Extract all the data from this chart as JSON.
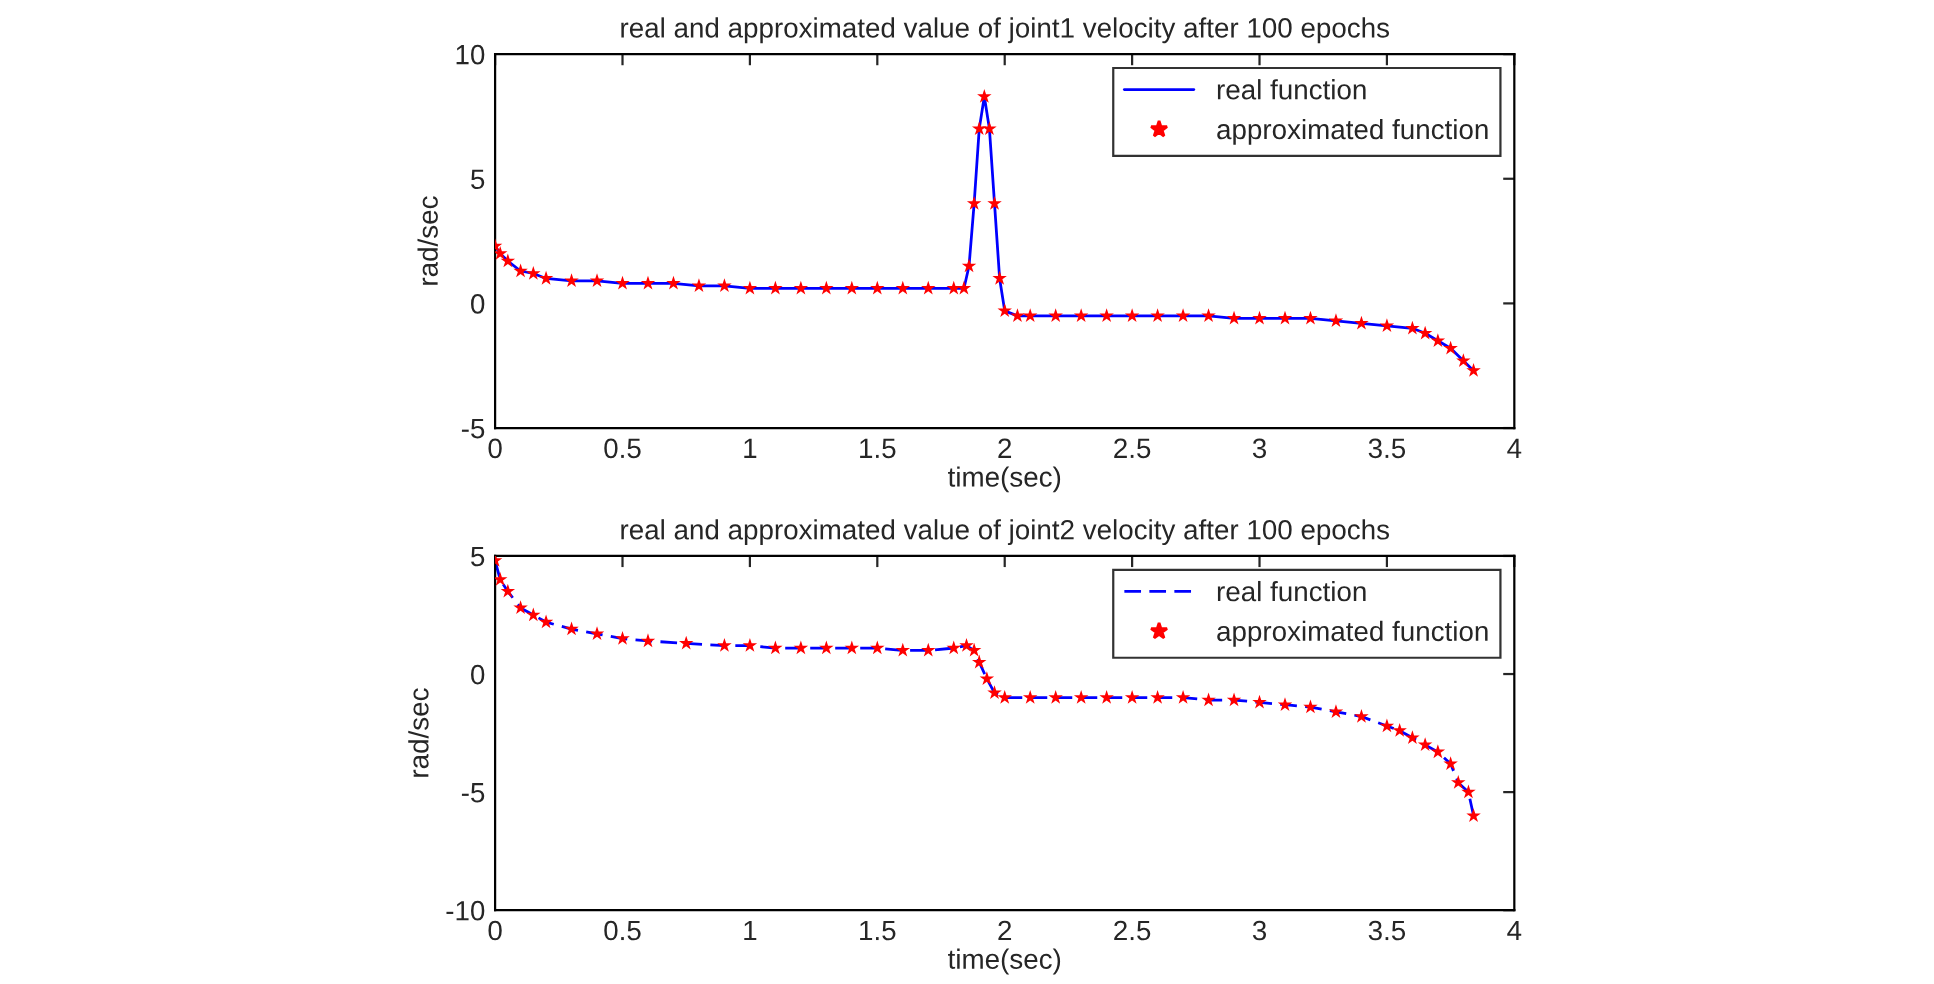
{
  "chart_data": [
    {
      "type": "line",
      "title": "real and approximated value of joint1 velocity after 100 epochs",
      "xlabel": "time(sec)",
      "ylabel": "rad/sec",
      "x": [
        0,
        0.02,
        0.05,
        0.1,
        0.15,
        0.2,
        0.3,
        0.4,
        0.5,
        0.6,
        0.7,
        0.8,
        0.9,
        1.0,
        1.1,
        1.2,
        1.3,
        1.4,
        1.5,
        1.6,
        1.7,
        1.8,
        1.84,
        1.86,
        1.88,
        1.9,
        1.92,
        1.94,
        1.96,
        1.98,
        2.0,
        2.05,
        2.1,
        2.2,
        2.3,
        2.4,
        2.5,
        2.6,
        2.7,
        2.8,
        2.9,
        3.0,
        3.1,
        3.2,
        3.3,
        3.4,
        3.5,
        3.6,
        3.65,
        3.7,
        3.75,
        3.8,
        3.84
      ],
      "series": [
        {
          "name": "real function",
          "line_style": "solid",
          "marker": "none",
          "color": "#0000ff",
          "values": [
            2.3,
            2.0,
            1.7,
            1.3,
            1.2,
            1.0,
            0.9,
            0.9,
            0.8,
            0.8,
            0.8,
            0.7,
            0.7,
            0.6,
            0.6,
            0.6,
            0.6,
            0.6,
            0.6,
            0.6,
            0.6,
            0.6,
            0.6,
            1.5,
            4.0,
            7.0,
            8.3,
            7.0,
            4.0,
            1.0,
            -0.3,
            -0.5,
            -0.5,
            -0.5,
            -0.5,
            -0.5,
            -0.5,
            -0.5,
            -0.5,
            -0.5,
            -0.6,
            -0.6,
            -0.6,
            -0.6,
            -0.7,
            -0.8,
            -0.9,
            -1.0,
            -1.2,
            -1.5,
            -1.8,
            -2.3,
            -2.7
          ]
        },
        {
          "name": "approximated function",
          "type": "scatter",
          "marker": "star",
          "color": "#ff0000",
          "values": [
            2.3,
            2.0,
            1.7,
            1.3,
            1.2,
            1.0,
            0.9,
            0.9,
            0.8,
            0.8,
            0.8,
            0.7,
            0.7,
            0.6,
            0.6,
            0.6,
            0.6,
            0.6,
            0.6,
            0.6,
            0.6,
            0.6,
            0.6,
            1.5,
            4.0,
            7.0,
            8.3,
            7.0,
            4.0,
            1.0,
            -0.3,
            -0.5,
            -0.5,
            -0.5,
            -0.5,
            -0.5,
            -0.5,
            -0.5,
            -0.5,
            -0.5,
            -0.6,
            -0.6,
            -0.6,
            -0.6,
            -0.7,
            -0.8,
            -0.9,
            -1.0,
            -1.2,
            -1.5,
            -1.8,
            -2.3,
            -2.7
          ]
        }
      ],
      "xlim": [
        0,
        4
      ],
      "xticks": [
        0,
        0.5,
        1,
        1.5,
        2,
        2.5,
        3,
        3.5,
        4
      ],
      "ylim": [
        -5,
        10
      ],
      "yticks": [
        -5,
        0,
        5,
        10
      ],
      "legend": "top right",
      "grid": false
    },
    {
      "type": "line",
      "title": "real and approximated value of joint2 velocity after 100 epochs",
      "xlabel": "time(sec)",
      "ylabel": "rad/sec",
      "x": [
        0,
        0.02,
        0.05,
        0.1,
        0.15,
        0.2,
        0.3,
        0.4,
        0.5,
        0.6,
        0.75,
        0.9,
        1.0,
        1.1,
        1.2,
        1.3,
        1.4,
        1.5,
        1.6,
        1.7,
        1.8,
        1.85,
        1.88,
        1.9,
        1.93,
        1.96,
        2.0,
        2.1,
        2.2,
        2.3,
        2.4,
        2.5,
        2.6,
        2.7,
        2.8,
        2.9,
        3.0,
        3.1,
        3.2,
        3.3,
        3.4,
        3.5,
        3.55,
        3.6,
        3.65,
        3.7,
        3.75,
        3.78,
        3.82,
        3.84
      ],
      "series": [
        {
          "name": "real function",
          "line_style": "dashed",
          "marker": "none",
          "color": "#0000ff",
          "values": [
            4.8,
            4.0,
            3.5,
            2.8,
            2.5,
            2.2,
            1.9,
            1.7,
            1.5,
            1.4,
            1.3,
            1.2,
            1.2,
            1.1,
            1.1,
            1.1,
            1.1,
            1.1,
            1.0,
            1.0,
            1.1,
            1.2,
            1.0,
            0.5,
            -0.2,
            -0.8,
            -1.0,
            -1.0,
            -1.0,
            -1.0,
            -1.0,
            -1.0,
            -1.0,
            -1.0,
            -1.1,
            -1.1,
            -1.2,
            -1.3,
            -1.4,
            -1.6,
            -1.8,
            -2.2,
            -2.4,
            -2.7,
            -3.0,
            -3.3,
            -3.8,
            -4.6,
            -5.0,
            -6.0
          ]
        },
        {
          "name": "approximated function",
          "type": "scatter",
          "marker": "star",
          "color": "#ff0000",
          "values": [
            4.8,
            4.0,
            3.5,
            2.8,
            2.5,
            2.2,
            1.9,
            1.7,
            1.5,
            1.4,
            1.3,
            1.2,
            1.2,
            1.1,
            1.1,
            1.1,
            1.1,
            1.1,
            1.0,
            1.0,
            1.1,
            1.2,
            1.0,
            0.5,
            -0.2,
            -0.8,
            -1.0,
            -1.0,
            -1.0,
            -1.0,
            -1.0,
            -1.0,
            -1.0,
            -1.0,
            -1.1,
            -1.1,
            -1.2,
            -1.3,
            -1.4,
            -1.6,
            -1.8,
            -2.2,
            -2.4,
            -2.7,
            -3.0,
            -3.3,
            -3.8,
            -4.6,
            -5.0,
            -6.0
          ]
        }
      ],
      "xlim": [
        0,
        4
      ],
      "xticks": [
        0,
        0.5,
        1,
        1.5,
        2,
        2.5,
        3,
        3.5,
        4
      ],
      "ylim": [
        -10,
        5
      ],
      "yticks": [
        -10,
        -5,
        0,
        5
      ],
      "legend": "top right",
      "grid": false
    }
  ]
}
